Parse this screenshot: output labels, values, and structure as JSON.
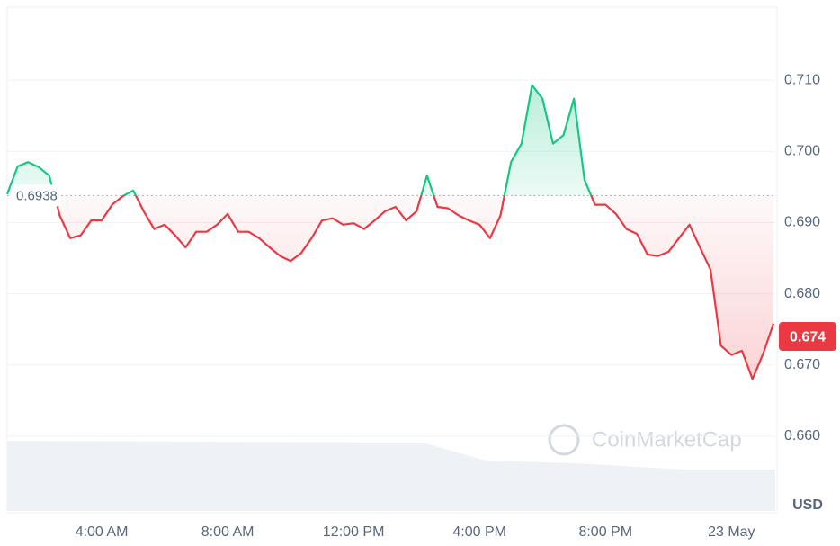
{
  "chart_data": {
    "type": "line",
    "categories": [
      null,
      null,
      null,
      null,
      null,
      null,
      null,
      null,
      null,
      "4:00 AM",
      null,
      null,
      null,
      null,
      null,
      null,
      null,
      null,
      null,
      null,
      null,
      "8:00 AM",
      null,
      null,
      null,
      null,
      null,
      null,
      null,
      null,
      null,
      null,
      null,
      "12:00 PM",
      null,
      null,
      null,
      null,
      null,
      null,
      null,
      null,
      null,
      null,
      null,
      "4:00 PM",
      null,
      null,
      null,
      null,
      null,
      null,
      null,
      null,
      null,
      null,
      null,
      "8:00 PM",
      null,
      null,
      null,
      null,
      null,
      null,
      null,
      null,
      null,
      null,
      null,
      "23 May",
      null,
      null,
      null,
      null
    ],
    "values": [
      0.694,
      0.6979,
      0.6985,
      0.6978,
      0.6966,
      0.691,
      0.6878,
      0.6882,
      0.6903,
      0.6903,
      0.6925,
      0.6937,
      0.6945,
      0.6916,
      0.6891,
      0.6897,
      0.6882,
      0.6865,
      0.6887,
      0.6887,
      0.6897,
      0.6912,
      0.6887,
      0.6887,
      0.6878,
      0.6865,
      0.6853,
      0.6846,
      0.6857,
      0.6878,
      0.6903,
      0.6906,
      0.6897,
      0.6899,
      0.6891,
      0.6903,
      0.6916,
      0.6922,
      0.6903,
      0.6916,
      0.6966,
      0.6922,
      0.692,
      0.691,
      0.6903,
      0.6897,
      0.6878,
      0.691,
      0.6985,
      0.7011,
      0.7093,
      0.7074,
      0.7011,
      0.7023,
      0.7074,
      0.696,
      0.6925,
      0.6925,
      0.6912,
      0.6891,
      0.6884,
      0.6855,
      0.6853,
      0.6859,
      0.6878,
      0.6897,
      0.6865,
      0.6834,
      0.6727,
      0.6714,
      0.672,
      0.668,
      0.6715,
      0.6758
    ],
    "up_color": "#16c784",
    "down_color": "#ea3943",
    "baseline": 0.6938,
    "current_price": 0.674,
    "ylim": [
      0.65,
      0.72
    ],
    "yticks": [
      {
        "value": 0.66,
        "label": "0.660"
      },
      {
        "value": 0.67,
        "label": "0.670"
      },
      {
        "value": 0.68,
        "label": "0.680"
      },
      {
        "value": 0.69,
        "label": "0.690"
      },
      {
        "value": 0.7,
        "label": "0.700"
      },
      {
        "value": 0.71,
        "label": "0.710"
      }
    ],
    "y_unit": "USD",
    "watermark": "CoinMarketCap",
    "grid": true
  }
}
